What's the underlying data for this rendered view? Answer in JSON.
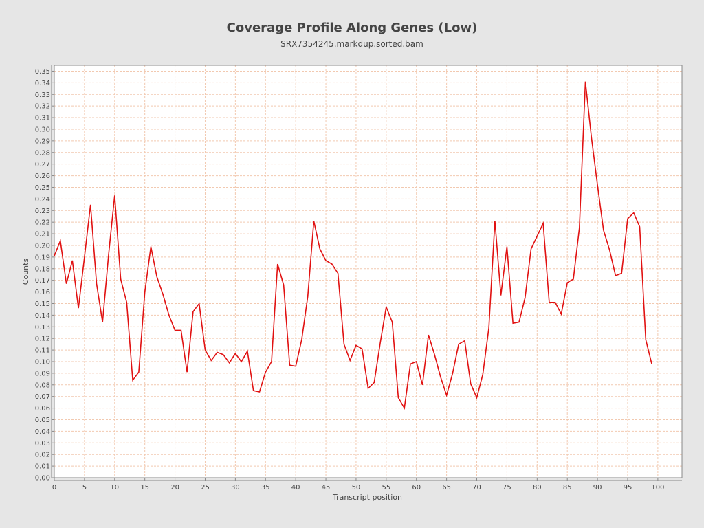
{
  "chart_data": {
    "type": "line",
    "title": "Coverage Profile Along Genes (Low)",
    "subtitle": "SRX7354245.markdup.sorted.bam",
    "xlabel": "Transcript position",
    "ylabel": "Counts",
    "xlim": [
      0,
      104
    ],
    "ylim": [
      0,
      0.355
    ],
    "x_ticks": [
      0,
      5,
      10,
      15,
      20,
      25,
      30,
      35,
      40,
      45,
      50,
      55,
      60,
      65,
      70,
      75,
      80,
      85,
      90,
      95,
      100
    ],
    "y_ticks": [
      0.0,
      0.01,
      0.02,
      0.03,
      0.04,
      0.05,
      0.06,
      0.07,
      0.08,
      0.09,
      0.1,
      0.11,
      0.12,
      0.13,
      0.14,
      0.15,
      0.16,
      0.17,
      0.18,
      0.19,
      0.2,
      0.21,
      0.22,
      0.23,
      0.24,
      0.25,
      0.26,
      0.27,
      0.28,
      0.29,
      0.3,
      0.31,
      0.32,
      0.33,
      0.34,
      0.35
    ],
    "grid": true,
    "colors": {
      "background": "#e6e6e6",
      "plot_background": "#ffffff",
      "grid": "#f2c9b0",
      "line": "#e11111",
      "axis": "#888888",
      "text": "#444444"
    },
    "series": [
      {
        "x": [
          0,
          1,
          2,
          3,
          4,
          5,
          6,
          7,
          8,
          9,
          10,
          11,
          12,
          13,
          14,
          15,
          16,
          17,
          18,
          19,
          20,
          21,
          22,
          23,
          24,
          25,
          26,
          27,
          28,
          29,
          30,
          31,
          32,
          33,
          34,
          35,
          36,
          37,
          38,
          39,
          40,
          41,
          42,
          43,
          44,
          45,
          46,
          47,
          48,
          49,
          50,
          51,
          52,
          53,
          54,
          55,
          56,
          57,
          58,
          59,
          60,
          61,
          62,
          63,
          64,
          65,
          66,
          67,
          68,
          69,
          70,
          71,
          72,
          73,
          74,
          75,
          76,
          77,
          78,
          79,
          80,
          81,
          82,
          83,
          84,
          85,
          86,
          87,
          88,
          89,
          90,
          91,
          92,
          93,
          94,
          95,
          96,
          97,
          98,
          99
        ],
        "values": [
          0.191,
          0.204,
          0.167,
          0.187,
          0.146,
          0.19,
          0.235,
          0.167,
          0.134,
          0.192,
          0.243,
          0.171,
          0.151,
          0.084,
          0.091,
          0.16,
          0.199,
          0.173,
          0.158,
          0.14,
          0.127,
          0.127,
          0.091,
          0.143,
          0.15,
          0.11,
          0.101,
          0.108,
          0.106,
          0.099,
          0.107,
          0.1,
          0.109,
          0.075,
          0.074,
          0.091,
          0.1,
          0.184,
          0.166,
          0.097,
          0.096,
          0.119,
          0.156,
          0.221,
          0.197,
          0.187,
          0.184,
          0.176,
          0.115,
          0.101,
          0.114,
          0.111,
          0.077,
          0.082,
          0.116,
          0.147,
          0.134,
          0.069,
          0.06,
          0.098,
          0.1,
          0.08,
          0.123,
          0.106,
          0.087,
          0.071,
          0.09,
          0.115,
          0.118,
          0.081,
          0.069,
          0.089,
          0.129,
          0.221,
          0.157,
          0.199,
          0.133,
          0.134,
          0.155,
          0.197,
          0.208,
          0.219,
          0.151,
          0.151,
          0.141,
          0.168,
          0.171,
          0.215,
          0.341,
          0.293,
          0.252,
          0.213,
          0.196,
          0.174,
          0.176,
          0.223,
          0.228,
          0.216,
          0.119,
          0.098
        ]
      }
    ]
  }
}
